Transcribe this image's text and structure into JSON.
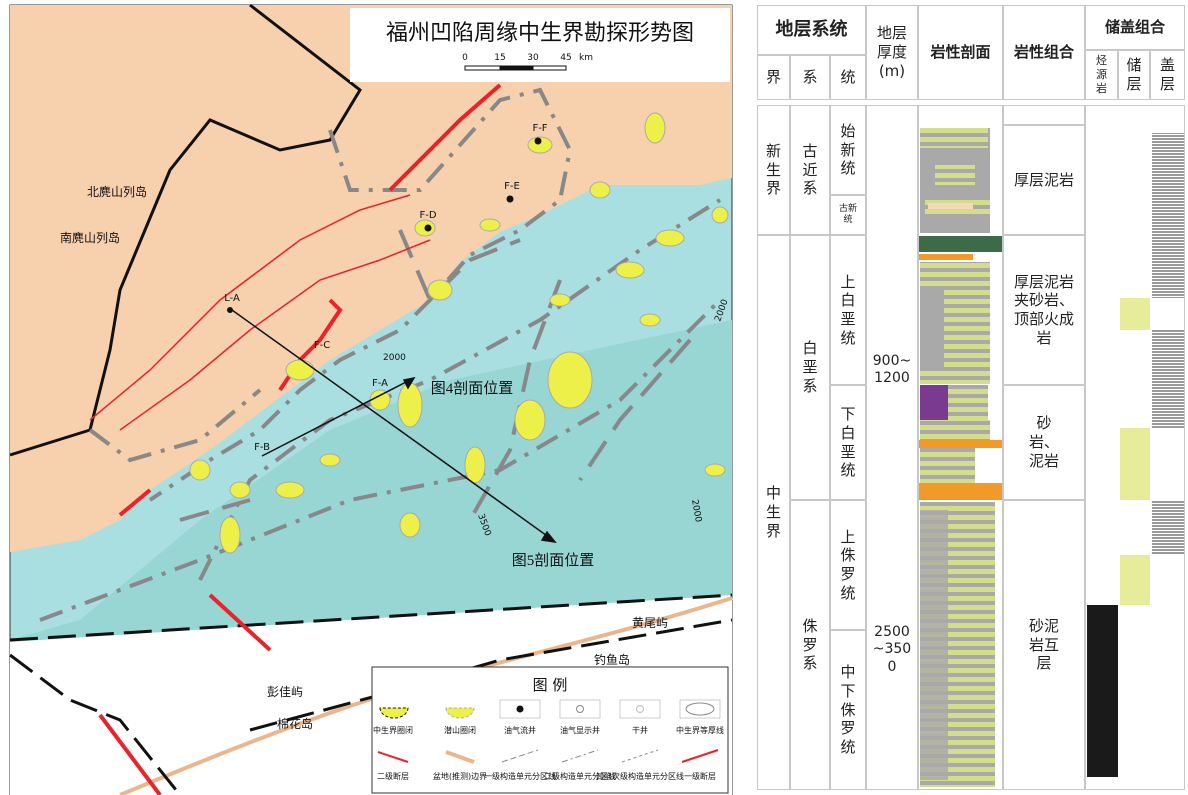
{
  "map": {
    "title": "福州凹陷周缘中生界勘探形势图",
    "scale": [
      "0",
      "15",
      "30",
      "45",
      "km"
    ],
    "places": [
      "北麂山列岛",
      "南麂山列岛",
      "黄尾屿",
      "钓鱼岛",
      "彭佳屿",
      "棉花岛"
    ],
    "profile_line": "L-A",
    "wells": [
      "F-F",
      "F-E",
      "F-D",
      "F-C",
      "F-A",
      "F-B"
    ],
    "sections": [
      "图4剖面位置",
      "图5剖面位置"
    ],
    "contours": [
      "2000",
      "2000",
      "3500",
      "2000"
    ],
    "legend": {
      "title": "图 例",
      "items": [
        "中生界圈闭",
        "潜山圈闭",
        "油气流井",
        "油气显示井",
        "干井",
        "中生界等厚线",
        "二级断层",
        "盆地(推测)边界",
        "一级构造单元分区线",
        "二级构造单元分区线",
        "凹陷次级构造单元分区线",
        "一级断层"
      ]
    }
  },
  "column": {
    "headers": {
      "system": "地层系统",
      "erathem": "界",
      "system_col": "系",
      "series": "统",
      "thickness": "地层厚度(m)",
      "lithology": "岩性剖面",
      "assemblage": "岩性组合",
      "reservoir_cap": "储盖组合",
      "source": "烃源岩",
      "reservoir": "储层",
      "cap": "盖层"
    },
    "erathems": [
      "新生界",
      "中生界"
    ],
    "systems": [
      "古近系",
      "白垩系",
      "侏罗系"
    ],
    "series": [
      "始新统",
      "古新统",
      "上白垩统",
      "下白垩统",
      "上侏罗统",
      "中下侏罗统"
    ],
    "thickness": [
      "900~1200",
      "2500~3500"
    ],
    "assemblages": [
      "厚层泥岩",
      "厚层泥岩夹砂岩、顶部火成岩",
      "砂岩、泥岩",
      "砂泥岩互层"
    ]
  }
}
